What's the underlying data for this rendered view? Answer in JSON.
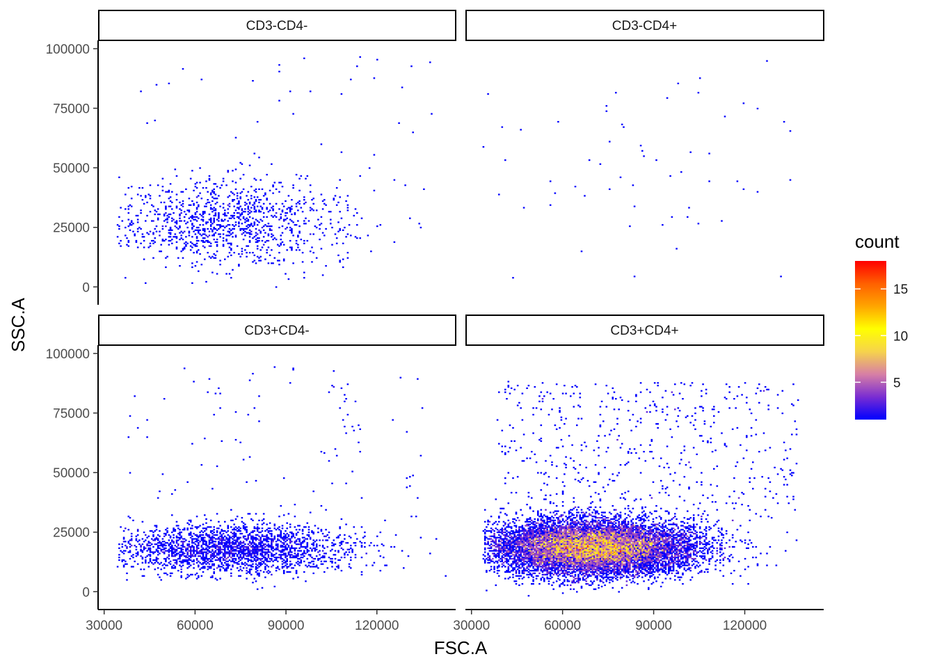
{
  "chart_data": {
    "type": "heatmap",
    "subtype": "faceted 2D bin count (hexbin/bin2d) scatter",
    "xlabel": "FSC.A",
    "ylabel": "SSC.A",
    "x_ticks": [
      30000,
      60000,
      90000,
      120000
    ],
    "x_tick_labels": [
      "30000",
      "60000",
      "90000",
      "120000"
    ],
    "y_ticks": [
      0,
      25000,
      50000,
      75000,
      100000
    ],
    "y_tick_labels": [
      "0",
      "25000",
      "50000",
      "75000",
      "100000"
    ],
    "xlim": [
      28000,
      146000
    ],
    "ylim": [
      -7500,
      103500
    ],
    "grid": false,
    "legend": {
      "title": "count",
      "placement": "right",
      "range": [
        1,
        18
      ],
      "ticks": [
        5,
        10,
        15
      ],
      "tick_labels": [
        "5",
        "10",
        "15"
      ],
      "colors": [
        "#0000ff",
        "#7a2dd2",
        "#d77fa5",
        "#f6d34c",
        "#ffff00",
        "#ffa500",
        "#ff6000",
        "#ff0000"
      ]
    },
    "panels": [
      {
        "label": "CD3-CD4-",
        "events_approx": 1200,
        "max_count_approx": 3,
        "core": {
          "fsc_center": 70000,
          "fsc_sd": 18000,
          "ssc_center": 27000,
          "ssc_sd": 9000
        },
        "outliers_ssc_range": [
          40000,
          97000
        ]
      },
      {
        "label": "CD3-CD4+",
        "events_approx": 70,
        "max_count_approx": 1,
        "core": {
          "fsc_center": 82000,
          "fsc_sd": 28000,
          "ssc_center": 45000,
          "ssc_sd": 25000
        },
        "outliers_ssc_range": [
          9000,
          88000
        ]
      },
      {
        "label": "CD3+CD4-",
        "events_approx": 2600,
        "max_count_approx": 5,
        "core": {
          "fsc_center": 72000,
          "fsc_sd": 18000,
          "ssc_center": 18000,
          "ssc_sd": 5000
        },
        "outliers_ssc_range": [
          30000,
          95000
        ]
      },
      {
        "label": "CD3+CD4+",
        "events_approx": 14000,
        "max_count_approx": 18,
        "core": {
          "fsc_center": 70000,
          "fsc_sd": 15000,
          "ssc_center": 18500,
          "ssc_sd": 5500
        },
        "outliers_ssc_range": [
          30000,
          88000
        ]
      }
    ]
  }
}
